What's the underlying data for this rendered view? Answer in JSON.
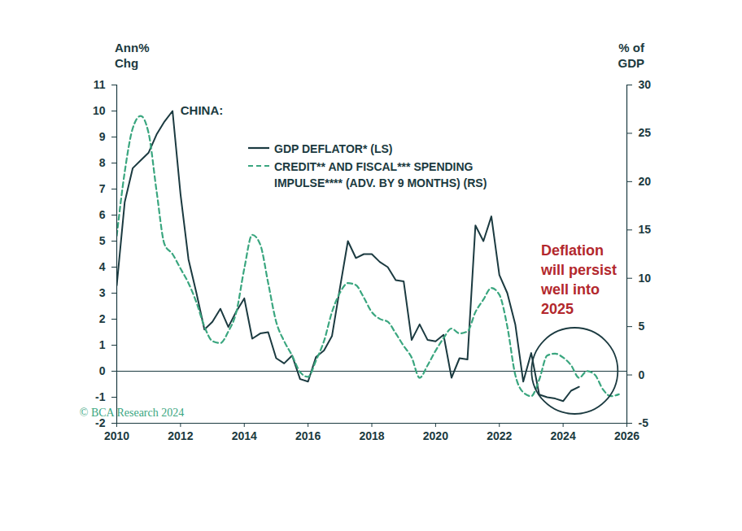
{
  "chart_data": {
    "type": "line",
    "title": "CHINA:",
    "y_label": "Ann%\nChg",
    "y2_label": "% of\nGDP",
    "annotation": "Deflation\nwill persist\nwell into\n2025",
    "source": "© BCA Research 2024",
    "xlim": [
      2010,
      2026
    ],
    "xticks": [
      2010,
      2012,
      2014,
      2016,
      2018,
      2020,
      2022,
      2024,
      2026
    ],
    "ylim": [
      -2,
      11
    ],
    "yticks": [
      -2,
      -1,
      0,
      1,
      2,
      3,
      4,
      5,
      6,
      7,
      8,
      9,
      10,
      11
    ],
    "y2lim": [
      -5,
      30
    ],
    "y2ticks": [
      -5,
      0,
      5,
      10,
      15,
      20,
      25,
      30
    ],
    "x": [
      2010,
      2010.25,
      2010.5,
      2010.75,
      2011,
      2011.25,
      2011.5,
      2011.75,
      2012,
      2012.25,
      2012.5,
      2012.75,
      2013,
      2013.25,
      2013.5,
      2013.75,
      2014,
      2014.25,
      2014.5,
      2014.75,
      2015,
      2015.25,
      2015.5,
      2015.75,
      2016,
      2016.25,
      2016.5,
      2016.75,
      2017,
      2017.25,
      2017.5,
      2017.75,
      2018,
      2018.25,
      2018.5,
      2018.75,
      2019,
      2019.25,
      2019.5,
      2019.75,
      2020,
      2020.25,
      2020.5,
      2020.75,
      2021,
      2021.25,
      2021.5,
      2021.75,
      2022,
      2022.25,
      2022.5,
      2022.75,
      2023,
      2023.25,
      2023.5,
      2023.75,
      2024,
      2024.25,
      2024.5,
      2024.75,
      2025,
      2025.25,
      2025.5,
      2025.75
    ],
    "series": [
      {
        "name": "GDP DEFLATOR* (LS)",
        "color": "#1b3a40",
        "line_style": "solid",
        "axis": "y",
        "values": [
          3.3,
          6.5,
          7.8,
          8.1,
          8.4,
          9.1,
          9.6,
          10.0,
          6.8,
          4.3,
          3.0,
          1.6,
          1.9,
          2.4,
          1.7,
          2.3,
          2.8,
          1.25,
          1.45,
          1.5,
          0.5,
          0.3,
          0.6,
          -0.3,
          -0.4,
          0.55,
          0.8,
          1.35,
          3.2,
          5.0,
          4.35,
          4.5,
          4.5,
          4.2,
          4.0,
          3.5,
          3.45,
          1.2,
          1.8,
          1.2,
          1.15,
          1.4,
          -0.25,
          0.5,
          0.45,
          5.6,
          5.0,
          5.95,
          3.7,
          3.0,
          1.8,
          -0.4,
          0.7,
          -0.9,
          -1.0,
          -1.05,
          -1.15,
          -0.75,
          -0.6,
          null,
          null,
          null,
          null,
          null
        ]
      },
      {
        "name": "CREDIT** AND FISCAL*** SPENDING IMPULSE**** (ADV. BY 9 MONTHS) (RS)",
        "color": "#3aa67f",
        "line_style": "dashed",
        "axis": "y2",
        "values": [
          14.4,
          21.0,
          25.5,
          26.8,
          25.0,
          19.0,
          13.5,
          12.5,
          11.0,
          9.5,
          7.5,
          5.0,
          3.5,
          3.3,
          4.5,
          6.5,
          11.0,
          14.5,
          13.5,
          9.5,
          5.5,
          3.5,
          2.0,
          0.3,
          -0.2,
          1.5,
          3.5,
          6.5,
          8.5,
          9.5,
          9.3,
          8.0,
          6.5,
          5.8,
          5.5,
          4.3,
          3.0,
          1.8,
          -0.3,
          1.0,
          2.5,
          3.8,
          4.8,
          4.3,
          4.5,
          6.5,
          7.8,
          9.0,
          8.3,
          5.0,
          0.0,
          -1.8,
          -2.2,
          -0.5,
          2.0,
          2.2,
          1.8,
          1.0,
          -0.3,
          0.4,
          0.0,
          -1.5,
          -2.2,
          -2.0
        ]
      }
    ]
  }
}
